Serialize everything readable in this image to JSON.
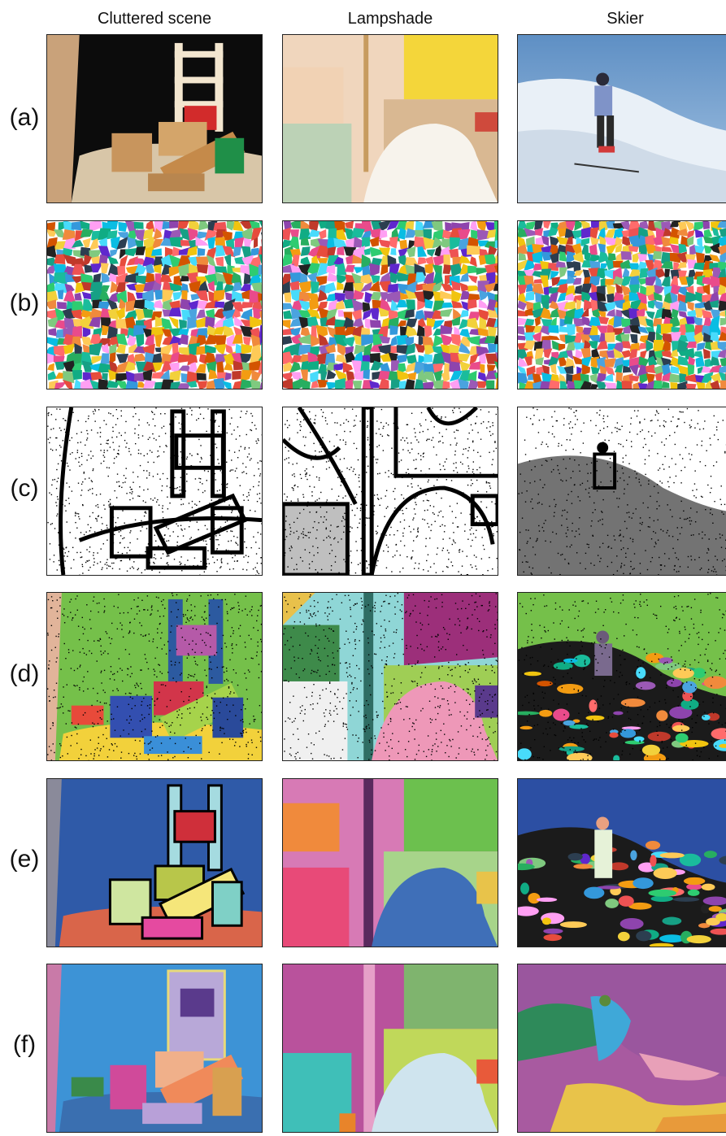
{
  "columns": [
    {
      "title": "Cluttered scene"
    },
    {
      "title": "Lampshade"
    },
    {
      "title": "Skier"
    }
  ],
  "rows": [
    {
      "label": "(a)"
    },
    {
      "label": "(b)"
    },
    {
      "label": "(c)"
    },
    {
      "label": "(d)"
    },
    {
      "label": "(e)"
    },
    {
      "label": "(f)"
    }
  ],
  "palette": [
    "#e94b8b",
    "#4aa3df",
    "#f2d13b",
    "#7fc97f",
    "#9b59b6",
    "#f08a3c",
    "#2ecc71",
    "#e74c3c",
    "#3498db",
    "#1abc9c",
    "#f39c12",
    "#8e44ad",
    "#16a085",
    "#d35400",
    "#c0392b",
    "#27ae60",
    "#f1c40f",
    "#2c3e50",
    "#ff9ff3",
    "#48dbfb",
    "#feca57",
    "#ff6b6b",
    "#5f27cd",
    "#10ac84",
    "#ee5253",
    "#0abde3",
    "#222222"
  ]
}
